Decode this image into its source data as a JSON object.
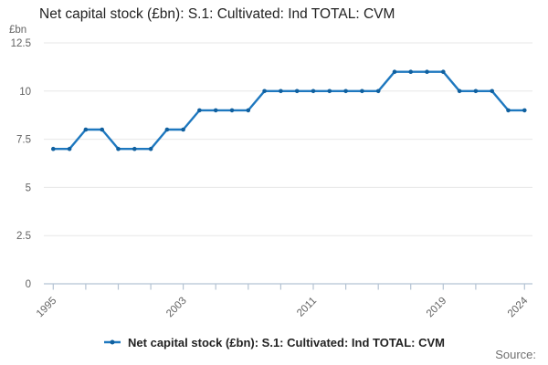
{
  "header": {
    "title": "Net capital stock (£bn): S.1: Cultivated: Ind TOTAL: CVM"
  },
  "y_axis": {
    "unit_label": "£bn",
    "tick_labels": [
      "12.5",
      "10",
      "7.5",
      "5",
      "2.5",
      "0"
    ]
  },
  "x_axis": {
    "labeled_ticks": [
      "1995",
      "2003",
      "2011",
      "2019",
      "2024"
    ]
  },
  "legend": {
    "label": "Net capital stock (£bn): S.1: Cultivated: Ind TOTAL: CVM",
    "position": "bottom"
  },
  "footer": {
    "source_label": "Source:"
  },
  "colors": {
    "line": "#1e78bf",
    "marker": "#10609f",
    "gridline": "#e7e7e7",
    "axis": "#b4c3d3",
    "title_text": "#222222",
    "tick_label_text": "#636363",
    "legend_text": "#222222",
    "source_text": "#707070"
  },
  "chart_data": {
    "type": "line",
    "title": "Net capital stock (£bn): S.1: Cultivated: Ind TOTAL: CVM",
    "xlabel": "",
    "ylabel": "£bn",
    "x": [
      1995,
      1996,
      1997,
      1998,
      1999,
      2000,
      2001,
      2002,
      2003,
      2004,
      2005,
      2006,
      2007,
      2008,
      2009,
      2010,
      2011,
      2012,
      2013,
      2014,
      2015,
      2016,
      2017,
      2018,
      2019,
      2020,
      2021,
      2022,
      2023,
      2024
    ],
    "values": [
      7,
      7,
      8,
      8,
      7,
      7,
      7,
      8,
      8,
      9,
      9,
      9,
      9,
      10,
      10,
      10,
      10,
      10,
      10,
      10,
      10,
      11,
      11,
      11,
      11,
      10,
      10,
      10,
      9,
      9
    ],
    "ylim": [
      0,
      12.5
    ],
    "yticks": [
      0,
      2.5,
      5,
      7.5,
      10,
      12.5
    ],
    "xticks": [
      1995,
      1997,
      1999,
      2001,
      2003,
      2005,
      2007,
      2009,
      2011,
      2013,
      2015,
      2017,
      2019,
      2021,
      2024
    ],
    "xtick_labels": [
      1995,
      2003,
      2011,
      2019,
      2024
    ],
    "grid": "horizontal",
    "legend_position": "bottom",
    "series_name": "Net capital stock (£bn): S.1: Cultivated: Ind TOTAL: CVM"
  }
}
